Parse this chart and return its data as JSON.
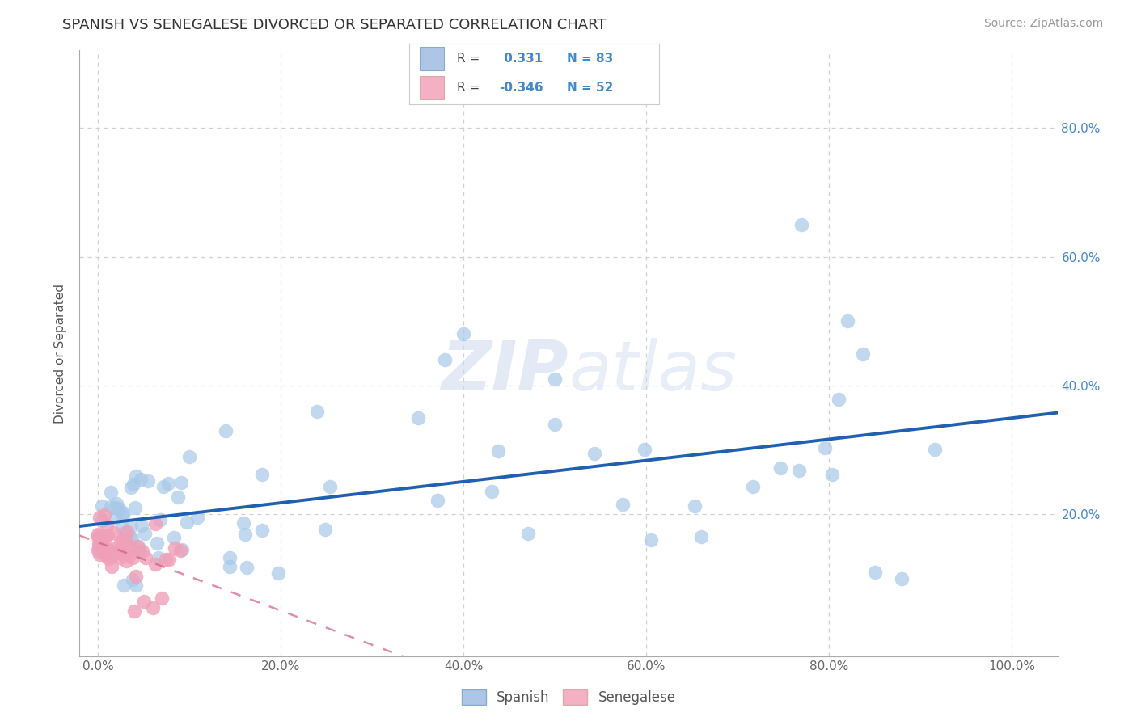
{
  "title": "SPANISH VS SENEGALESE DIVORCED OR SEPARATED CORRELATION CHART",
  "source_text": "Source: ZipAtlas.com",
  "ylabel": "Divorced or Separated",
  "watermark": "ZIPatlas",
  "legend_R_spanish": " 0.331",
  "legend_N_spanish": "83",
  "legend_R_senegalese": "-0.346",
  "legend_N_senegalese": "52",
  "legend_label_spanish": "Spanish",
  "legend_label_senegalese": "Senegalese",
  "xlim": [
    -0.02,
    1.05
  ],
  "ylim": [
    -0.02,
    0.92
  ],
  "xticks": [
    0.0,
    0.2,
    0.4,
    0.6,
    0.8,
    1.0
  ],
  "yticks": [
    0.0,
    0.2,
    0.4,
    0.6,
    0.8
  ],
  "grid_color": "#d0d0d0",
  "background_color": "#ffffff",
  "blue_dot_color": "#a8c8e8",
  "blue_line_color": "#2060b0",
  "pink_dot_color": "#f0a0b8",
  "pink_line_color": "#d06080",
  "title_color": "#333333",
  "source_color": "#999999",
  "right_label_color": "#4488cc",
  "legend_text_color": "#4488cc"
}
